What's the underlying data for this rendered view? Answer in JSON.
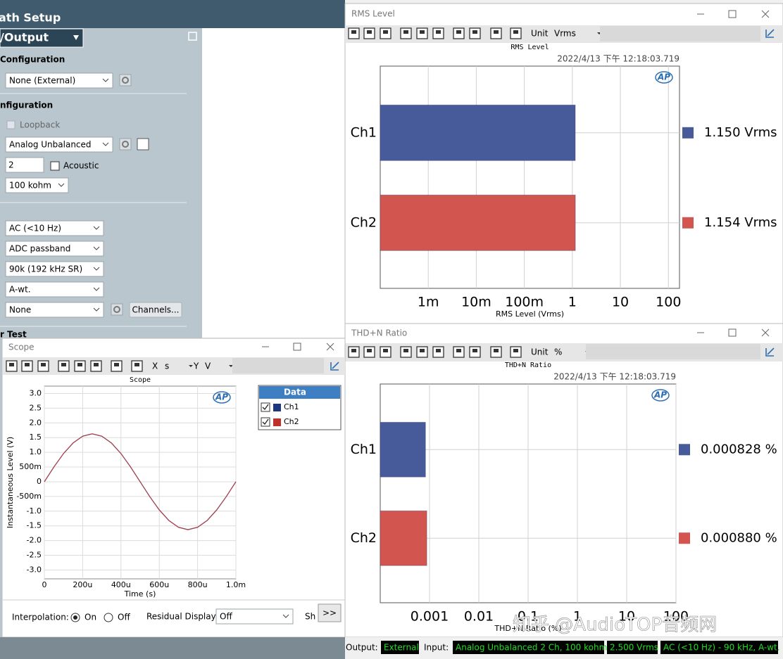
{
  "left_panel": {
    "title": "ath Setup",
    "output_selector": "/Output",
    "section_generator": "Configuration",
    "generator_select": "None (External)",
    "section_input": "nfiguration",
    "loopback": "Loopback",
    "input_select": "Analog Unbalanced",
    "channels": "2",
    "acoustic": "Acoustic",
    "impedance": "100 kohm",
    "coupling": "AC (<10 Hz)",
    "bandwidth": "ADC passband",
    "lowpass": "90k (192 kHz SR)",
    "weighting": "A-wt.",
    "filter": "None",
    "channels_button": "Channels...",
    "section_test": "r Test"
  },
  "windows": {
    "logo": "AP",
    "rms": {
      "title": "RMS Level",
      "unit_label": "Unit",
      "unit": "Vrms"
    },
    "thdn": {
      "title": "THD+N Ratio",
      "unit_label": "Unit",
      "unit": "%"
    },
    "scope": {
      "title": "Scope",
      "x_label": "X",
      "x_unit": "s",
      "y_label": "Y",
      "y_unit": "V",
      "legend_title": "Data",
      "interpolation": "Interpolation:",
      "on": "On",
      "off": "Off",
      "residual": "Residual Display:",
      "residual_value": "Off",
      "sh": "Sh",
      "more": ">>"
    }
  },
  "chart_data": [
    {
      "type": "hbar",
      "title": "RMS Level",
      "timestamp": "2022/4/13 下午 12:18:03.719",
      "xlabel": "RMS Level (Vrms)",
      "categories": [
        "Ch1",
        "Ch2"
      ],
      "values": [
        1.15,
        1.154
      ],
      "value_labels": [
        "1.150 Vrms",
        "1.154 Vrms"
      ],
      "colors": [
        "#475b9b",
        "#d2554f"
      ],
      "xscale": "log",
      "xlim": [
        0.0001,
        170
      ],
      "xticks": [
        {
          "value": 0.001,
          "label": "1m"
        },
        {
          "value": 0.01,
          "label": "10m"
        },
        {
          "value": 0.1,
          "label": "100m"
        },
        1,
        10,
        100
      ],
      "grid": true
    },
    {
      "type": "hbar",
      "title": "THD+N Ratio",
      "timestamp": "2022/4/13 下午 12:18:03.719",
      "xlabel": "THD+N Ratio (%)",
      "categories": [
        "Ch1",
        "Ch2"
      ],
      "values": [
        0.000828,
        0.00088
      ],
      "value_labels": [
        "0.000828 %",
        "0.000880 %"
      ],
      "colors": [
        "#475b9b",
        "#d2554f"
      ],
      "xscale": "log",
      "xlim": [
        0.0001,
        100
      ],
      "xticks": [
        0.001,
        0.01,
        0.1,
        1,
        10,
        100
      ],
      "grid": true
    },
    {
      "type": "line",
      "title": "Scope",
      "xlabel": "Time (s)",
      "ylabel": "Instantaneous Level (V)",
      "x": [
        0,
        5e-05,
        0.0001,
        0.00015,
        0.0002,
        0.00025,
        0.0003,
        0.00035,
        0.0004,
        0.00045,
        0.0005,
        0.00055,
        0.0006,
        0.00065,
        0.0007,
        0.00075,
        0.0008,
        0.00085,
        0.0009,
        0.00095,
        0.001
      ],
      "series": [
        {
          "name": "Ch1",
          "color": "#1f3580",
          "values": [
            0,
            0.502,
            0.956,
            1.315,
            1.546,
            1.626,
            1.546,
            1.315,
            0.956,
            0.502,
            0,
            -0.502,
            -0.956,
            -1.315,
            -1.546,
            -1.626,
            -1.546,
            -1.315,
            -0.956,
            -0.502,
            0
          ]
        },
        {
          "name": "Ch2",
          "color": "#c0302a",
          "values": [
            0,
            0.504,
            0.959,
            1.32,
            1.552,
            1.632,
            1.552,
            1.32,
            0.959,
            0.504,
            0,
            -0.504,
            -0.959,
            -1.32,
            -1.552,
            -1.632,
            -1.552,
            -1.32,
            -0.959,
            -0.504,
            0
          ]
        }
      ],
      "xlim": [
        0,
        0.001
      ],
      "ylim": [
        -3.3,
        3.25
      ],
      "xticks": [
        0,
        {
          "value": 0.0002,
          "label": "200u"
        },
        {
          "value": 0.0004,
          "label": "400u"
        },
        {
          "value": 0.0006,
          "label": "600u"
        },
        {
          "value": 0.0008,
          "label": "800u"
        },
        {
          "value": 0.001,
          "label": "1.0m"
        }
      ],
      "yticks": [
        {
          "value": 3,
          "label": "3.0"
        },
        2.5,
        {
          "value": 2,
          "label": "2.0"
        },
        1.5,
        {
          "value": 1,
          "label": "1.0"
        },
        {
          "value": 0.5,
          "label": "500m"
        },
        0,
        {
          "value": -0.5,
          "label": "-500m"
        },
        {
          "value": -1,
          "label": "-1.0"
        },
        -1.5,
        {
          "value": -2,
          "label": "-2.0"
        },
        -2.5,
        {
          "value": -3,
          "label": "-3.0"
        }
      ],
      "grid": true
    }
  ],
  "status_bar": {
    "output_label": "Output:",
    "output": "External",
    "input_label": "Input:",
    "input": "Analog Unbalanced 2 Ch, 100 kohm",
    "level": "2.500 Vrms",
    "filter": "AC (<10 Hz) - 90 kHz, A-wt."
  },
  "watermark": "知乎 @AudioTOP音频网"
}
